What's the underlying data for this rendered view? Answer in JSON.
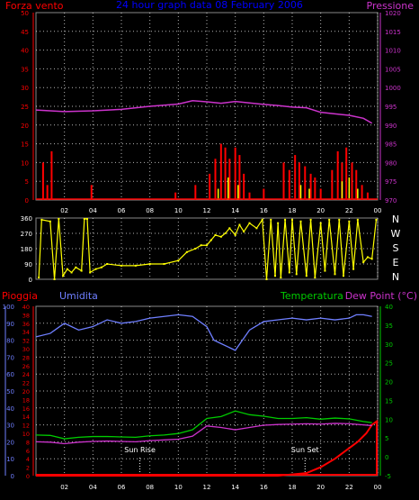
{
  "colors": {
    "background": "#000000",
    "grid": "#ffffff",
    "wind": "#ff0000",
    "gust": "#ffff00",
    "pressure": "#cc33cc",
    "direction": "#ffff00",
    "rain": "#ff0000",
    "humidity": "#6f7fff",
    "temperature": "#00cc00",
    "dewpoint": "#cc33cc",
    "sun": "#ffffff",
    "title": "#0000ff",
    "leftAxisTop": "#ff0000",
    "rightAxisTop": "#cc33cc",
    "dirAxis": "#ffff00",
    "rainAxis": "#ff0000",
    "humAxis": "#6f7fff",
    "tempAxis": "#00cc00"
  },
  "title": "24 hour graph data  08 February 2006",
  "top_panel": {
    "left_label": "Forza vento",
    "right_label": "Pressione"
  },
  "direction_panel": {
    "letters": [
      "N",
      "W",
      "S",
      "E",
      "N"
    ]
  },
  "bottom_panel": {
    "label_rain": "Pioggia",
    "label_humidity": "Umidita",
    "label_temperature": "Temperatura",
    "label_dewpoint": "Dew Point (°C)",
    "sun_rise": "Sun Rise",
    "sun_set": "Sun Set"
  },
  "x_ticks": [
    "02",
    "04",
    "06",
    "08",
    "10",
    "12",
    "14",
    "16",
    "18",
    "20",
    "22",
    "00"
  ],
  "chart_data": [
    {
      "type": "line",
      "panel": "wind-pressure",
      "x_unit": "hours",
      "xlim": [
        0,
        24
      ],
      "y_left": {
        "label": "Forza vento",
        "lim": [
          0,
          50
        ],
        "ticks": [
          0,
          5,
          10,
          15,
          20,
          25,
          30,
          35,
          40,
          45,
          50
        ]
      },
      "y_right": {
        "label": "Pressione",
        "lim": [
          970,
          1020
        ],
        "ticks": [
          970,
          975,
          980,
          985,
          990,
          995,
          1000,
          1005,
          1010,
          1015,
          1020
        ]
      },
      "series": [
        {
          "name": "Pressione",
          "axis": "right",
          "points": [
            [
              0,
              994
            ],
            [
              2,
              993.6
            ],
            [
              4,
              993.8
            ],
            [
              6,
              994.2
            ],
            [
              8,
              995
            ],
            [
              10,
              995.6
            ],
            [
              11,
              996.5
            ],
            [
              12,
              996.2
            ],
            [
              13,
              995.8
            ],
            [
              14,
              996.3
            ],
            [
              15,
              995.9
            ],
            [
              16,
              995.5
            ],
            [
              17,
              995.2
            ],
            [
              18,
              994.8
            ],
            [
              19,
              994.6
            ],
            [
              20,
              993.4
            ],
            [
              21,
              993
            ],
            [
              22,
              992.6
            ],
            [
              23,
              991.8
            ],
            [
              23.6,
              990.5
            ]
          ]
        },
        {
          "name": "Forza vento",
          "axis": "left",
          "bars": [
            [
              0.5,
              10
            ],
            [
              0.8,
              4
            ],
            [
              1.1,
              13
            ],
            [
              3.9,
              4
            ],
            [
              9.8,
              2
            ],
            [
              11.2,
              4
            ],
            [
              12.2,
              7
            ],
            [
              12.6,
              11
            ],
            [
              13,
              15
            ],
            [
              13.3,
              14
            ],
            [
              13.6,
              11
            ],
            [
              14,
              14
            ],
            [
              14.3,
              12
            ],
            [
              14.6,
              7
            ],
            [
              15,
              2
            ],
            [
              16,
              3
            ],
            [
              17.4,
              10
            ],
            [
              17.8,
              8
            ],
            [
              18.2,
              12
            ],
            [
              18.5,
              10
            ],
            [
              18.9,
              9
            ],
            [
              19.3,
              7
            ],
            [
              19.6,
              6
            ],
            [
              20,
              3
            ],
            [
              20.8,
              8
            ],
            [
              21.2,
              13
            ],
            [
              21.5,
              10
            ],
            [
              21.8,
              14
            ],
            [
              22.2,
              10
            ],
            [
              22.5,
              8
            ],
            [
              22.9,
              4
            ],
            [
              23.3,
              2
            ]
          ]
        },
        {
          "name": "Raffica",
          "axis": "left",
          "bars": [
            [
              12.8,
              3
            ],
            [
              13.5,
              6
            ],
            [
              14.2,
              4
            ],
            [
              18.6,
              4
            ],
            [
              19.2,
              3
            ],
            [
              21.5,
              5
            ],
            [
              22,
              6
            ],
            [
              22.6,
              3
            ]
          ]
        }
      ]
    },
    {
      "type": "scatter",
      "panel": "wind-direction",
      "x_unit": "hours",
      "xlim": [
        0,
        24
      ],
      "y_lim": [
        0,
        360
      ],
      "y_ticks": [
        0,
        90,
        180,
        270,
        360
      ],
      "series": [
        {
          "name": "Direzione",
          "points": [
            [
              0.2,
              10
            ],
            [
              0.4,
              350
            ],
            [
              1.0,
              340
            ],
            [
              1.3,
              0
            ],
            [
              1.6,
              355
            ],
            [
              1.9,
              20
            ],
            [
              2.2,
              60
            ],
            [
              2.5,
              40
            ],
            [
              2.8,
              70
            ],
            [
              3.2,
              50
            ],
            [
              3.4,
              355
            ],
            [
              3.6,
              355
            ],
            [
              3.8,
              40
            ],
            [
              4.2,
              60
            ],
            [
              4.6,
              70
            ],
            [
              5.0,
              90
            ],
            [
              6.0,
              80
            ],
            [
              7.0,
              80
            ],
            [
              8.0,
              90
            ],
            [
              9.0,
              90
            ],
            [
              10.0,
              110
            ],
            [
              10.6,
              160
            ],
            [
              11.2,
              180
            ],
            [
              11.6,
              200
            ],
            [
              12.0,
              200
            ],
            [
              12.3,
              230
            ],
            [
              12.6,
              260
            ],
            [
              13.0,
              250
            ],
            [
              13.3,
              270
            ],
            [
              13.6,
              300
            ],
            [
              14.0,
              260
            ],
            [
              14.3,
              320
            ],
            [
              14.6,
              280
            ],
            [
              15.0,
              330
            ],
            [
              15.5,
              300
            ],
            [
              15.9,
              350
            ],
            [
              16.2,
              0
            ],
            [
              16.5,
              350
            ],
            [
              16.8,
              20
            ],
            [
              17.0,
              330
            ],
            [
              17.2,
              10
            ],
            [
              17.5,
              350
            ],
            [
              17.8,
              40
            ],
            [
              18.0,
              350
            ],
            [
              18.3,
              30
            ],
            [
              18.6,
              340
            ],
            [
              19.0,
              20
            ],
            [
              19.3,
              350
            ],
            [
              19.6,
              10
            ],
            [
              20.0,
              330
            ],
            [
              20.3,
              50
            ],
            [
              20.6,
              350
            ],
            [
              21.0,
              30
            ],
            [
              21.3,
              350
            ],
            [
              21.6,
              20
            ],
            [
              22.0,
              340
            ],
            [
              22.3,
              60
            ],
            [
              22.6,
              350
            ],
            [
              23.0,
              100
            ],
            [
              23.3,
              130
            ],
            [
              23.6,
              120
            ],
            [
              23.9,
              350
            ]
          ]
        }
      ]
    },
    {
      "type": "line",
      "panel": "rain-humidity-temperature",
      "x_unit": "hours",
      "xlim": [
        0,
        24
      ],
      "y_rain": {
        "label": "Pioggia",
        "lim": [
          0,
          40
        ],
        "ticks": [
          0,
          2,
          4,
          6,
          8,
          10,
          12,
          14,
          16,
          18,
          20,
          22,
          24,
          26,
          28,
          30,
          32,
          34,
          36,
          38,
          40
        ]
      },
      "y_humidity": {
        "label": "Umidita",
        "lim": [
          0,
          100
        ],
        "ticks": [
          0,
          10,
          20,
          30,
          40,
          50,
          60,
          70,
          80,
          90,
          100
        ]
      },
      "y_temperature": {
        "label": "Temperatura",
        "lim": [
          -5,
          40
        ],
        "ticks": [
          -5,
          0,
          5,
          10,
          15,
          20,
          25,
          30,
          35,
          40
        ]
      },
      "series": [
        {
          "name": "Umidita",
          "axis": "humidity",
          "points": [
            [
              0,
              82
            ],
            [
              1,
              84
            ],
            [
              2,
              90
            ],
            [
              3,
              86
            ],
            [
              4,
              88
            ],
            [
              5,
              92
            ],
            [
              6,
              90
            ],
            [
              7,
              91
            ],
            [
              8,
              93
            ],
            [
              9,
              94
            ],
            [
              10,
              95
            ],
            [
              11,
              94
            ],
            [
              12,
              88
            ],
            [
              12.5,
              80
            ],
            [
              13,
              78
            ],
            [
              14,
              74
            ],
            [
              14.5,
              80
            ],
            [
              15,
              86
            ],
            [
              16,
              91
            ],
            [
              17,
              92
            ],
            [
              18,
              93
            ],
            [
              19,
              92
            ],
            [
              20,
              93
            ],
            [
              21,
              92
            ],
            [
              22,
              93
            ],
            [
              22.5,
              95
            ],
            [
              23,
              95
            ],
            [
              23.6,
              94
            ]
          ]
        },
        {
          "name": "Temperatura",
          "axis": "temperature",
          "points": [
            [
              0,
              5.8
            ],
            [
              1,
              5.7
            ],
            [
              2,
              4.8
            ],
            [
              3,
              5.2
            ],
            [
              4,
              5.4
            ],
            [
              5,
              5.4
            ],
            [
              6,
              5.3
            ],
            [
              7,
              5.2
            ],
            [
              8,
              5.6
            ],
            [
              9,
              5.8
            ],
            [
              10,
              6.2
            ],
            [
              11,
              7.2
            ],
            [
              12,
              10.2
            ],
            [
              13,
              10.7
            ],
            [
              14,
              12.2
            ],
            [
              15,
              11.2
            ],
            [
              16,
              10.8
            ],
            [
              17,
              10.2
            ],
            [
              18,
              10.2
            ],
            [
              19,
              10.4
            ],
            [
              20,
              10
            ],
            [
              21,
              10.3
            ],
            [
              22,
              10.1
            ],
            [
              23,
              9.4
            ],
            [
              23.6,
              9.1
            ]
          ]
        },
        {
          "name": "Dew Point",
          "axis": "temperature",
          "points": [
            [
              0,
              4
            ],
            [
              1,
              3.9
            ],
            [
              2,
              3.5
            ],
            [
              3,
              3.9
            ],
            [
              4,
              4.1
            ],
            [
              5,
              4.2
            ],
            [
              6,
              4.1
            ],
            [
              7,
              4.0
            ],
            [
              8,
              4.3
            ],
            [
              9,
              4.5
            ],
            [
              10,
              4.7
            ],
            [
              11,
              5.5
            ],
            [
              12,
              8.2
            ],
            [
              13,
              7.8
            ],
            [
              14,
              7.2
            ],
            [
              15,
              7.8
            ],
            [
              16,
              8.4
            ],
            [
              17,
              8.6
            ],
            [
              18,
              8.7
            ],
            [
              19,
              8.8
            ],
            [
              20,
              8.7
            ],
            [
              21,
              8.9
            ],
            [
              22,
              8.8
            ],
            [
              23,
              8.5
            ],
            [
              23.6,
              8.3
            ]
          ]
        },
        {
          "name": "Pioggia",
          "axis": "rain",
          "points": [
            [
              0,
              0
            ],
            [
              17,
              0
            ],
            [
              18,
              0.3
            ],
            [
              19,
              0.6
            ],
            [
              20,
              2
            ],
            [
              21,
              4
            ],
            [
              22,
              6.5
            ],
            [
              22.6,
              8
            ],
            [
              23.2,
              10
            ],
            [
              23.6,
              12
            ],
            [
              24,
              13
            ]
          ]
        }
      ],
      "annotations": [
        {
          "label": "Sun Rise",
          "x": 7.3
        },
        {
          "label": "Sun Set",
          "x": 18.9
        }
      ]
    }
  ]
}
